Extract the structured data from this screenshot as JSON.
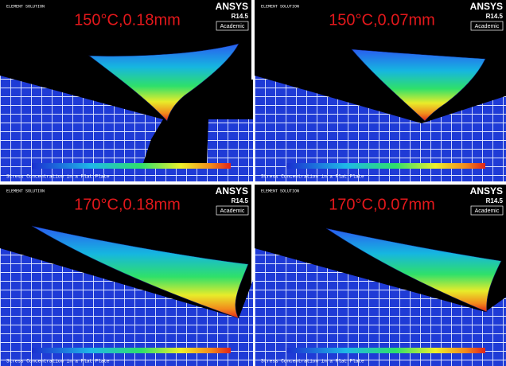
{
  "panels": [
    {
      "title": "150°C,0.18mm",
      "brand": "ANSYS",
      "version": "R14.5",
      "license": "Academic",
      "header": "ELEMENT SOLUTION",
      "footer": "Stress Concentration in a Flat Plate"
    },
    {
      "title": "150°C,0.07mm",
      "brand": "ANSYS",
      "version": "R14.5",
      "license": "Academic",
      "header": "ELEMENT SOLUTION",
      "footer": "Stress Concentration in a Flat Plate"
    },
    {
      "title": "170°C,0.18mm",
      "brand": "ANSYS",
      "version": "R14.5",
      "license": "Academic",
      "header": "ELEMENT SOLUTION",
      "footer": "Stress Concentration in a Flat Plate"
    },
    {
      "title": "170°C,0.07mm",
      "brand": "ANSYS",
      "version": "R14.5",
      "license": "Academic",
      "header": "ELEMENT SOLUTION",
      "footer": "Stress Concentration in a Flat Plate"
    }
  ]
}
